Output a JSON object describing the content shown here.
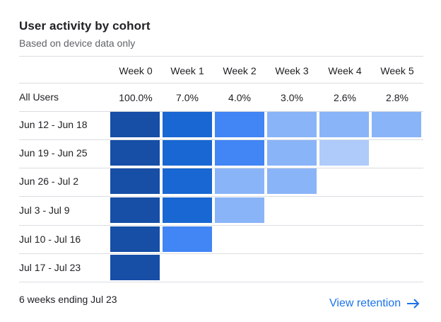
{
  "card": {
    "title": "User activity by cohort",
    "subtitle": "Based on device data only",
    "footer_note": "6 weeks ending Jul 23",
    "link_label": "View retention",
    "link_icon": "arrow-right-icon",
    "link_color": "#1a73e8"
  },
  "weeks": [
    "Week 0",
    "Week 1",
    "Week 2",
    "Week 3",
    "Week 4",
    "Week 5"
  ],
  "all_users": {
    "label": "All Users",
    "values": [
      "100.0%",
      "7.0%",
      "4.0%",
      "3.0%",
      "2.6%",
      "2.8%"
    ]
  },
  "cohorts": [
    {
      "label": "Jun 12 - Jun 18",
      "levels": [
        5,
        4,
        3,
        1,
        1,
        1
      ]
    },
    {
      "label": "Jun 19 - Jun 25",
      "levels": [
        5,
        4,
        3,
        1,
        0
      ]
    },
    {
      "label": "Jun 26 - Jul 2",
      "levels": [
        5,
        4,
        1,
        1
      ]
    },
    {
      "label": "Jul 3 - Jul 9",
      "levels": [
        5,
        4,
        1
      ]
    },
    {
      "label": "Jul 10 - Jul 16",
      "levels": [
        5,
        3
      ]
    },
    {
      "label": "Jul 17 - Jul 23",
      "levels": [
        5
      ]
    }
  ],
  "level_colors": {
    "0": "#aecbfa",
    "1": "#8ab4f8",
    "3": "#4285f4",
    "4": "#1967d2",
    "5": "#174ea6"
  }
}
